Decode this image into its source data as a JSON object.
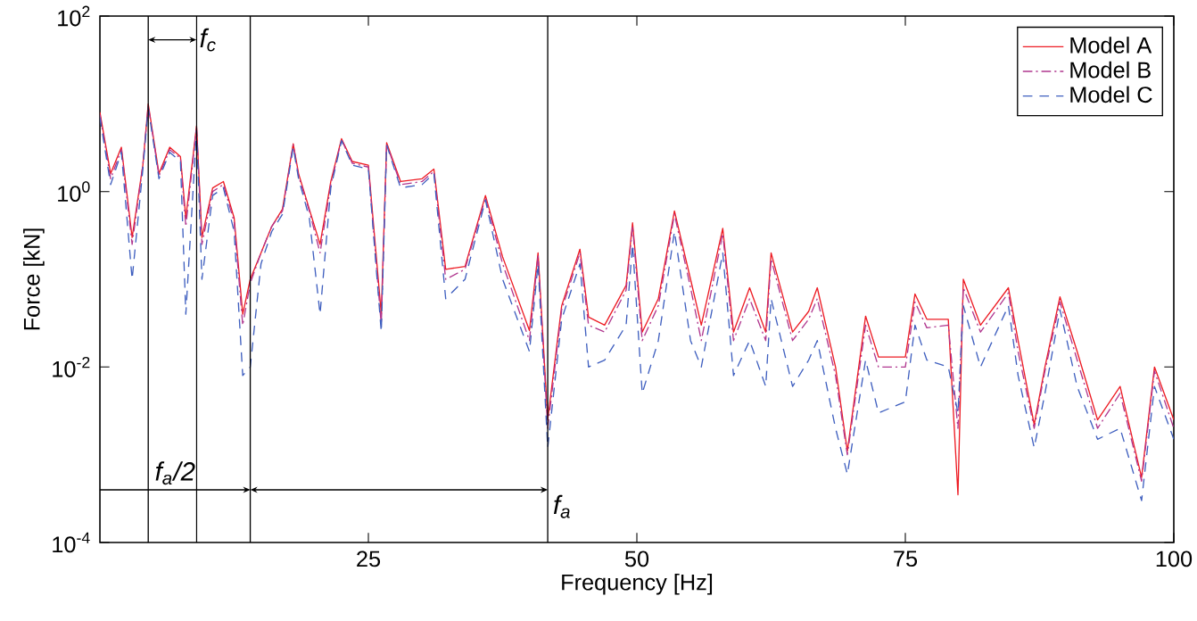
{
  "chart_data": {
    "type": "line",
    "xlabel": "Frequency  [Hz]",
    "ylabel": "Force  [kN]",
    "log": "y",
    "legend": "top right",
    "marker": "none",
    "grid": false,
    "xlim": [
      0,
      100
    ],
    "xticks": [
      25,
      50,
      75,
      100
    ],
    "ylim": [
      0.0001,
      100
    ],
    "yticks": [
      {
        "value": 0.0001,
        "label": "10$^{-4}$"
      },
      {
        "value": 0.01,
        "label": "10$^{-2}$"
      },
      {
        "value": 1,
        "label": "10$^{0}$"
      },
      {
        "value": 100,
        "label": "10$^{2}$"
      }
    ],
    "x": [
      0,
      1,
      2,
      3,
      4,
      4.5,
      5.5,
      6.5,
      7.5,
      8,
      9,
      9.5,
      10.5,
      11.5,
      12.5,
      13.3,
      14,
      15,
      16,
      17,
      18,
      18.5,
      19.5,
      20.5,
      21.5,
      22.5,
      23.5,
      25,
      26.2,
      26.7,
      28,
      30,
      31.1,
      32.2,
      34,
      35.9,
      37.5,
      40,
      40.8,
      41.7,
      43,
      44.7,
      45.5,
      47,
      49,
      49.6,
      50.5,
      52,
      53.5,
      55,
      56,
      58,
      59,
      60.5,
      62,
      62.5,
      64.5,
      66,
      66.8,
      68.5,
      69.6,
      71.3,
      72.5,
      75,
      75.9,
      77,
      79,
      79.9,
      80.4,
      82,
      84.6,
      85.5,
      87,
      88,
      89.4,
      91,
      92.9,
      95,
      97,
      98.2,
      100
    ],
    "series": [
      {
        "name": "Model A",
        "color": "#ed1c24",
        "line_style": "solid",
        "values": [
          8,
          1.6,
          3.2,
          0.3,
          2,
          10,
          1.6,
          3.2,
          2.5,
          0.5,
          5.6,
          0.3,
          1.1,
          1.3,
          0.5,
          0.04,
          0.1,
          0.2,
          0.4,
          0.63,
          3.5,
          1.6,
          0.63,
          0.25,
          1.3,
          4,
          2.2,
          2,
          0.04,
          3.6,
          1.3,
          1.4,
          1.8,
          0.13,
          0.14,
          0.9,
          0.18,
          0.026,
          0.2,
          0.0025,
          0.05,
          0.22,
          0.037,
          0.03,
          0.085,
          0.44,
          0.025,
          0.06,
          0.6,
          0.1,
          0.03,
          0.38,
          0.025,
          0.08,
          0.025,
          0.2,
          0.025,
          0.043,
          0.08,
          0.01,
          0.0011,
          0.038,
          0.013,
          0.013,
          0.068,
          0.035,
          0.035,
          0.00035,
          0.1,
          0.03,
          0.08,
          0.02,
          0.0022,
          0.01,
          0.063,
          0.015,
          0.0025,
          0.006,
          0.00055,
          0.01,
          0.0025
        ]
      },
      {
        "name": "Model B",
        "color": "#b0378f",
        "line_style": "dashdot",
        "values": [
          7.5,
          1.4,
          3,
          0.25,
          2,
          9.5,
          1.5,
          3,
          2.4,
          0.4,
          5.4,
          0.25,
          1,
          1.2,
          0.45,
          0.03,
          0.09,
          0.2,
          0.4,
          0.6,
          3.4,
          1.5,
          0.6,
          0.2,
          1.2,
          3.9,
          2.1,
          1.9,
          0.03,
          3.5,
          1.2,
          1.3,
          1.7,
          0.1,
          0.13,
          0.85,
          0.15,
          0.02,
          0.19,
          0.002,
          0.045,
          0.2,
          0.03,
          0.025,
          0.075,
          0.4,
          0.02,
          0.05,
          0.55,
          0.08,
          0.02,
          0.33,
          0.02,
          0.06,
          0.02,
          0.17,
          0.02,
          0.035,
          0.06,
          0.008,
          0.001,
          0.03,
          0.01,
          0.01,
          0.055,
          0.028,
          0.03,
          0.002,
          0.08,
          0.025,
          0.07,
          0.015,
          0.002,
          0.009,
          0.055,
          0.012,
          0.002,
          0.005,
          0.0005,
          0.009,
          0.002
        ]
      },
      {
        "name": "Model C",
        "color": "#3f5fbf",
        "line_style": "dashed",
        "values": [
          7,
          1.2,
          2.8,
          0.1,
          1.8,
          9,
          1.4,
          2.8,
          2.2,
          0.04,
          5,
          0.1,
          0.9,
          1.1,
          0.35,
          0.008,
          0.01,
          0.15,
          0.35,
          0.55,
          3.2,
          1.4,
          0.5,
          0.04,
          1.1,
          3.8,
          2,
          1.8,
          0.025,
          3.4,
          1.1,
          1.2,
          1.6,
          0.06,
          0.1,
          0.8,
          0.1,
          0.015,
          0.15,
          0.0012,
          0.035,
          0.15,
          0.01,
          0.012,
          0.03,
          0.25,
          0.005,
          0.02,
          0.35,
          0.02,
          0.01,
          0.2,
          0.008,
          0.02,
          0.006,
          0.06,
          0.006,
          0.012,
          0.02,
          0.002,
          0.0006,
          0.012,
          0.003,
          0.004,
          0.03,
          0.012,
          0.01,
          0.003,
          0.05,
          0.01,
          0.05,
          0.008,
          0.0012,
          0.005,
          0.045,
          0.006,
          0.0015,
          0.002,
          0.0003,
          0.006,
          0.0015
        ]
      }
    ],
    "ref_lines": [
      {
        "axis": "x",
        "value": 4.5,
        "label": null,
        "color": "#000000"
      },
      {
        "axis": "x",
        "value": 9,
        "label": "f$_{c}$",
        "color": "#000000"
      },
      {
        "axis": "x",
        "value": 14,
        "label": "f$_{a}$/2",
        "color": "#000000"
      },
      {
        "axis": "x",
        "value": 41.7,
        "label": "f$_{a}$",
        "color": "#000000"
      }
    ]
  }
}
